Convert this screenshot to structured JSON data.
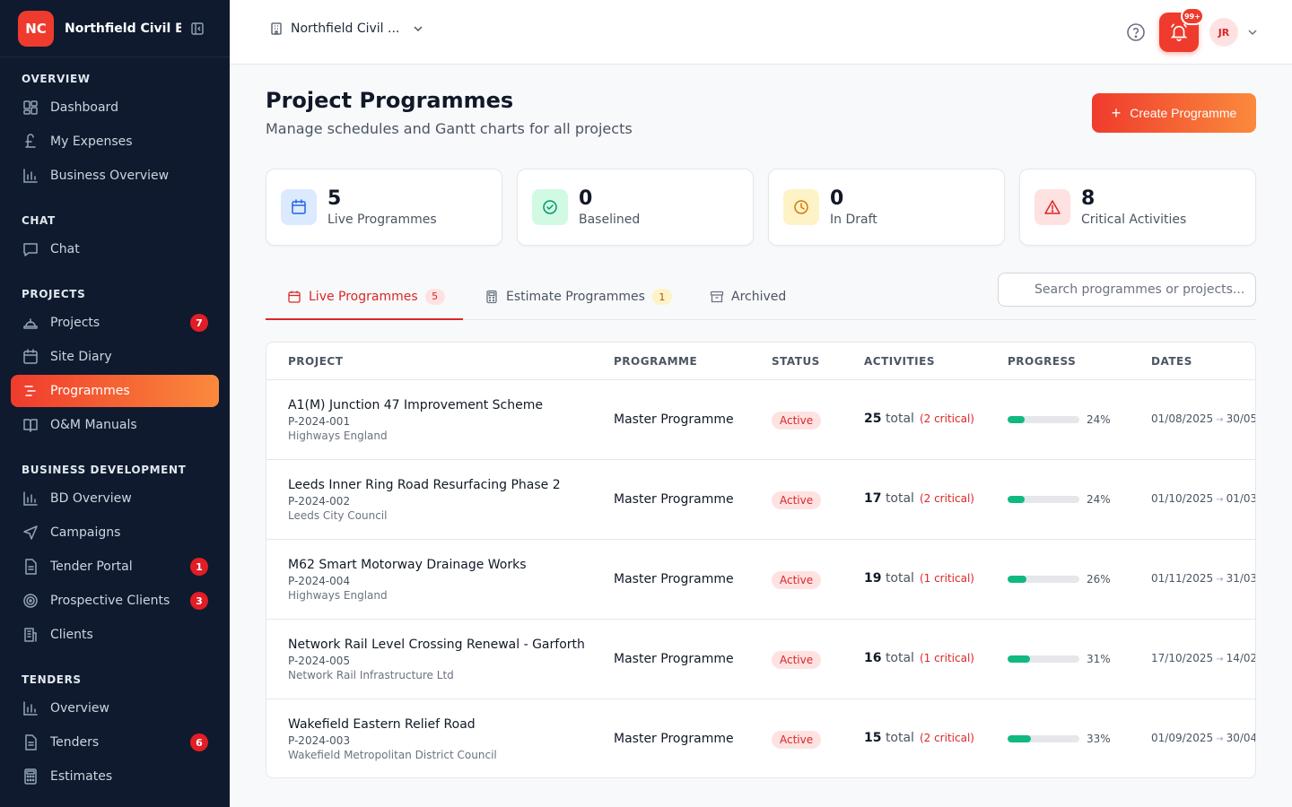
{
  "brand": {
    "initials": "NC",
    "name": "Northfield Civil E..."
  },
  "sidebar": {
    "sections": [
      {
        "heading": "OVERVIEW",
        "items": [
          {
            "label": "Dashboard",
            "icon": "dashboard-icon"
          },
          {
            "label": "My Expenses",
            "icon": "pound-icon"
          },
          {
            "label": "Business Overview",
            "icon": "bar-chart-icon"
          }
        ]
      },
      {
        "heading": "CHAT",
        "items": [
          {
            "label": "Chat",
            "icon": "chat-icon"
          }
        ]
      },
      {
        "heading": "PROJECTS",
        "items": [
          {
            "label": "Projects",
            "icon": "hard-hat-icon",
            "badge": "7"
          },
          {
            "label": "Site Diary",
            "icon": "calendar-icon"
          },
          {
            "label": "Programmes",
            "icon": "gantt-icon",
            "active": true
          },
          {
            "label": "O&M Manuals",
            "icon": "book-icon"
          }
        ]
      },
      {
        "heading": "BUSINESS DEVELOPMENT",
        "items": [
          {
            "label": "BD Overview",
            "icon": "bar-chart-icon"
          },
          {
            "label": "Campaigns",
            "icon": "send-icon"
          },
          {
            "label": "Tender Portal",
            "icon": "document-icon",
            "badge": "1"
          },
          {
            "label": "Prospective Clients",
            "icon": "target-icon",
            "badge": "3"
          },
          {
            "label": "Clients",
            "icon": "building-icon"
          }
        ]
      },
      {
        "heading": "TENDERS",
        "items": [
          {
            "label": "Overview",
            "icon": "bar-chart-icon"
          },
          {
            "label": "Tenders",
            "icon": "document-icon",
            "badge": "6"
          },
          {
            "label": "Estimates",
            "icon": "calculator-icon"
          }
        ]
      }
    ]
  },
  "topbar": {
    "org_name": "Northfield Civil ...",
    "notifications": "99+",
    "user_initials": "JR"
  },
  "page": {
    "title": "Project Programmes",
    "subtitle": "Manage schedules and Gantt charts for all projects",
    "create_label": "Create Programme"
  },
  "stats": [
    {
      "value": "5",
      "label": "Live Programmes",
      "icon": "calendar-icon",
      "color": "#2563eb",
      "bg": "#dbeafe"
    },
    {
      "value": "0",
      "label": "Baselined",
      "icon": "check-circle-icon",
      "color": "#059669",
      "bg": "#d1fae5"
    },
    {
      "value": "0",
      "label": "In Draft",
      "icon": "clock-icon",
      "color": "#d97706",
      "bg": "#fef3c7"
    },
    {
      "value": "8",
      "label": "Critical Activities",
      "icon": "warning-icon",
      "color": "#dc2626",
      "bg": "#fee2e2"
    }
  ],
  "tabs": [
    {
      "label": "Live Programmes",
      "badge": "5"
    },
    {
      "label": "Estimate Programmes",
      "badge": "1"
    },
    {
      "label": "Archived"
    }
  ],
  "search": {
    "placeholder": "Search programmes or projects..."
  },
  "table": {
    "headers": [
      "PROJECT",
      "PROGRAMME",
      "STATUS",
      "ACTIVITIES",
      "PROGRESS",
      "DATES"
    ],
    "rows": [
      {
        "name": "A1(M) Junction 47 Improvement Scheme",
        "code": "P-2024-001",
        "client": "Highways England",
        "programme": "Master Programme",
        "status": "Active",
        "activities": "25",
        "total_label": "total",
        "critical": "(2 critical)",
        "progress": 24,
        "progress_label": "24%",
        "start": "01/08/2025",
        "end": "30/05"
      },
      {
        "name": "Leeds Inner Ring Road Resurfacing Phase 2",
        "code": "P-2024-002",
        "client": "Leeds City Council",
        "programme": "Master Programme",
        "status": "Active",
        "activities": "17",
        "total_label": "total",
        "critical": "(2 critical)",
        "progress": 24,
        "progress_label": "24%",
        "start": "01/10/2025",
        "end": "01/03"
      },
      {
        "name": "M62 Smart Motorway Drainage Works",
        "code": "P-2024-004",
        "client": "Highways England",
        "programme": "Master Programme",
        "status": "Active",
        "activities": "19",
        "total_label": "total",
        "critical": "(1 critical)",
        "progress": 26,
        "progress_label": "26%",
        "start": "01/11/2025",
        "end": "31/03"
      },
      {
        "name": "Network Rail Level Crossing Renewal - Garforth",
        "code": "P-2024-005",
        "client": "Network Rail Infrastructure Ltd",
        "programme": "Master Programme",
        "status": "Active",
        "activities": "16",
        "total_label": "total",
        "critical": "(1 critical)",
        "progress": 31,
        "progress_label": "31%",
        "start": "17/10/2025",
        "end": "14/02"
      },
      {
        "name": "Wakefield Eastern Relief Road",
        "code": "P-2024-003",
        "client": "Wakefield Metropolitan District Council",
        "programme": "Master Programme",
        "status": "Active",
        "activities": "15",
        "total_label": "total",
        "critical": "(2 critical)",
        "progress": 33,
        "progress_label": "33%",
        "start": "01/09/2025",
        "end": "30/04"
      }
    ]
  }
}
